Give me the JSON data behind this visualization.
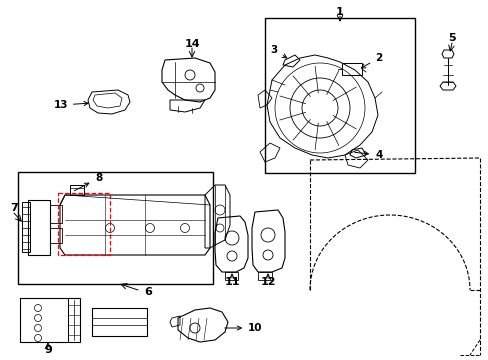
{
  "background_color": "#ffffff",
  "line_color": "#000000",
  "fig_w": 4.89,
  "fig_h": 3.6,
  "dpi": 100
}
